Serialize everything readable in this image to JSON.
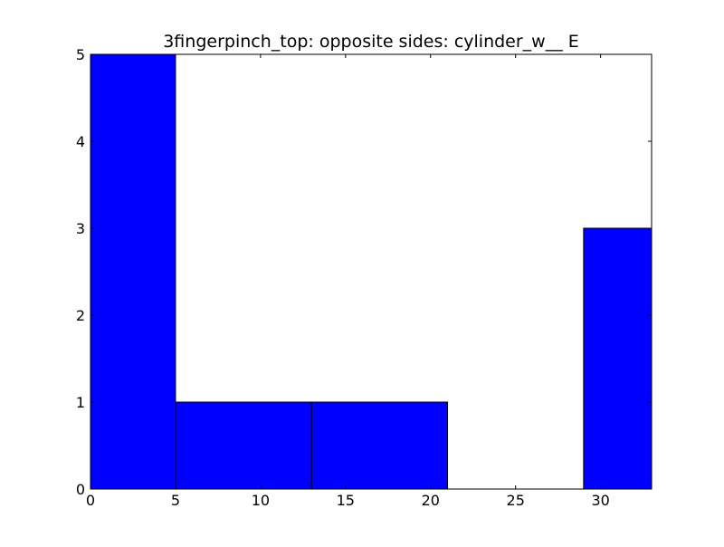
{
  "chart_data": {
    "type": "bar",
    "title": "3fingerpinch_top: opposite sides: cylinder_w__ E",
    "xlabel": "",
    "ylabel": "",
    "bins": [
      {
        "x0": 0,
        "x1": 5,
        "value": 5
      },
      {
        "x0": 5,
        "x1": 13,
        "value": 1
      },
      {
        "x0": 13,
        "x1": 21,
        "value": 1
      },
      {
        "x0": 21,
        "x1": 29,
        "value": 0
      },
      {
        "x0": 29,
        "x1": 33,
        "value": 3
      }
    ],
    "xlim": [
      0,
      33
    ],
    "ylim": [
      0,
      5
    ],
    "x_ticks": [
      0,
      5,
      10,
      15,
      20,
      25,
      30
    ],
    "y_ticks": [
      0,
      1,
      2,
      3,
      4,
      5
    ],
    "grid": false,
    "legend": "none",
    "bar_color": "#0000ff",
    "edge_color": "#000000"
  }
}
